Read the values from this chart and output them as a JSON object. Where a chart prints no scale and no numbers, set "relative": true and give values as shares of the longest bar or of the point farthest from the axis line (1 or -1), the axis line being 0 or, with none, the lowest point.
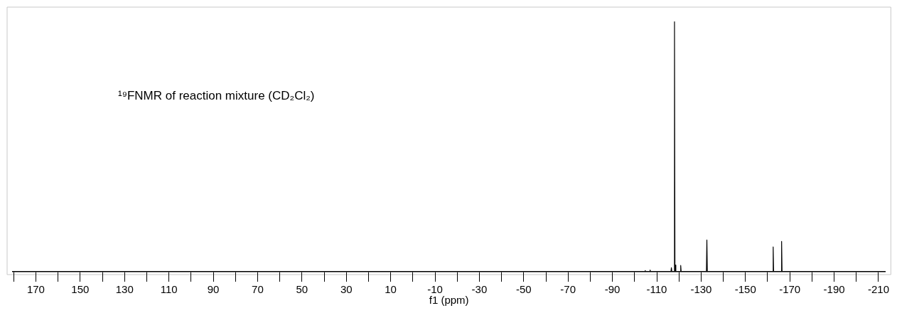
{
  "chart_data": {
    "type": "line",
    "relative": true,
    "xlabel": "f1 (ppm)",
    "annotations": [
      "¹⁹FNMR of reaction mixture (CD₂Cl₂)"
    ],
    "xlim": [
      180.4,
      -213
    ],
    "xticks": [
      {
        "value": 180,
        "label": null
      },
      170,
      {
        "value": 160,
        "label": null
      },
      150,
      {
        "value": 140,
        "label": null
      },
      130,
      {
        "value": 120,
        "label": null
      },
      110,
      {
        "value": 100,
        "label": null
      },
      90,
      {
        "value": 80,
        "label": null
      },
      70,
      {
        "value": 60,
        "label": null
      },
      50,
      {
        "value": 40,
        "label": null
      },
      30,
      {
        "value": 20,
        "label": null
      },
      10,
      {
        "value": 0,
        "label": null
      },
      -10,
      {
        "value": -20,
        "label": null
      },
      -30,
      {
        "value": -40,
        "label": null
      },
      -50,
      {
        "value": -60,
        "label": null
      },
      -70,
      {
        "value": -80,
        "label": null
      },
      -90,
      {
        "value": -100,
        "label": null
      },
      -110,
      {
        "value": -120,
        "label": null
      },
      -130,
      {
        "value": -140,
        "label": null
      },
      -150,
      {
        "value": -160,
        "label": null
      },
      -170,
      {
        "value": -180,
        "label": null
      },
      -190,
      {
        "value": -200,
        "label": null
      },
      -210
    ],
    "tick_labels": "x",
    "grid": false,
    "marker": "none",
    "line_style": "solid",
    "series": [
      {
        "color": "#000000",
        "x": [
          180.4,
          -104.6,
          -104.8,
          -105,
          -106.8,
          -107,
          -107.2,
          -116.4,
          -116.6,
          -116.8,
          -117.8,
          -118,
          -118.2,
          -118.3,
          -118.4,
          -118.6,
          -120.6,
          -120.8,
          -121,
          -132.4,
          -132.6,
          -132.8,
          -162.3,
          -162.5,
          -162.7,
          -166.1,
          -166.3,
          -166.5,
          -213
        ],
        "values": [
          0,
          0,
          0.005,
          0,
          0,
          0.007,
          0,
          0,
          0.016,
          0,
          0,
          1,
          0,
          0.027,
          0.027,
          0,
          0,
          0.025,
          0,
          0,
          0.127,
          0,
          0,
          0.099,
          0,
          0,
          0.121,
          0,
          0
        ]
      }
    ]
  }
}
